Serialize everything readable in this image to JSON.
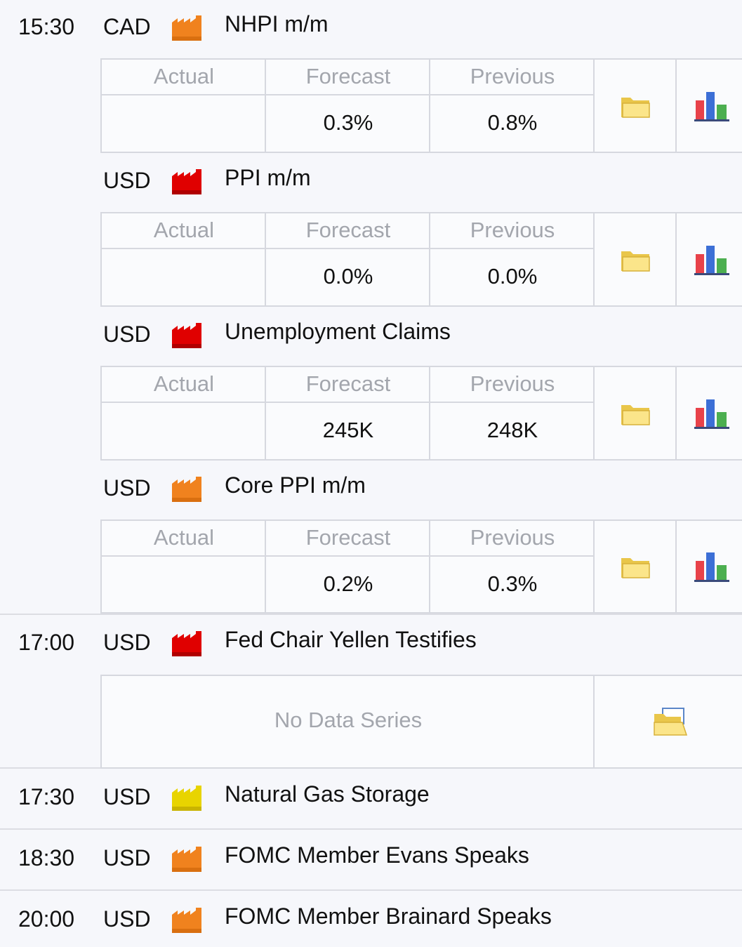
{
  "events": [
    {
      "time": "15:30",
      "currency": "CAD",
      "impact": "medium",
      "impact_color": "#f0821e",
      "title": "NHPI m/m",
      "actual_label": "Actual",
      "forecast_label": "Forecast",
      "previous_label": "Previous",
      "actual": "",
      "forecast": "0.3%",
      "previous": "0.8%"
    },
    {
      "time": "",
      "currency": "USD",
      "impact": "high",
      "impact_color": "#e00000",
      "title": "PPI m/m",
      "actual_label": "Actual",
      "forecast_label": "Forecast",
      "previous_label": "Previous",
      "actual": "",
      "forecast": "0.0%",
      "previous": "0.0%"
    },
    {
      "time": "",
      "currency": "USD",
      "impact": "high",
      "impact_color": "#e00000",
      "title": "Unemployment Claims",
      "actual_label": "Actual",
      "forecast_label": "Forecast",
      "previous_label": "Previous",
      "actual": "",
      "forecast": "245K",
      "previous": "248K"
    },
    {
      "time": "",
      "currency": "USD",
      "impact": "medium",
      "impact_color": "#f0821e",
      "title": "Core PPI m/m",
      "actual_label": "Actual",
      "forecast_label": "Forecast",
      "previous_label": "Previous",
      "actual": "",
      "forecast": "0.2%",
      "previous": "0.3%"
    },
    {
      "time": "17:00",
      "currency": "USD",
      "impact": "high",
      "impact_color": "#e00000",
      "title": "Fed Chair Yellen Testifies",
      "no_data": "No Data Series"
    },
    {
      "time": "17:30",
      "currency": "USD",
      "impact": "low",
      "impact_color": "#e8d400",
      "title": "Natural Gas Storage"
    },
    {
      "time": "18:30",
      "currency": "USD",
      "impact": "medium",
      "impact_color": "#f0821e",
      "title": "FOMC Member Evans Speaks"
    },
    {
      "time": "20:00",
      "currency": "USD",
      "impact": "medium",
      "impact_color": "#f0821e",
      "title": "FOMC Member Brainard Speaks"
    }
  ]
}
